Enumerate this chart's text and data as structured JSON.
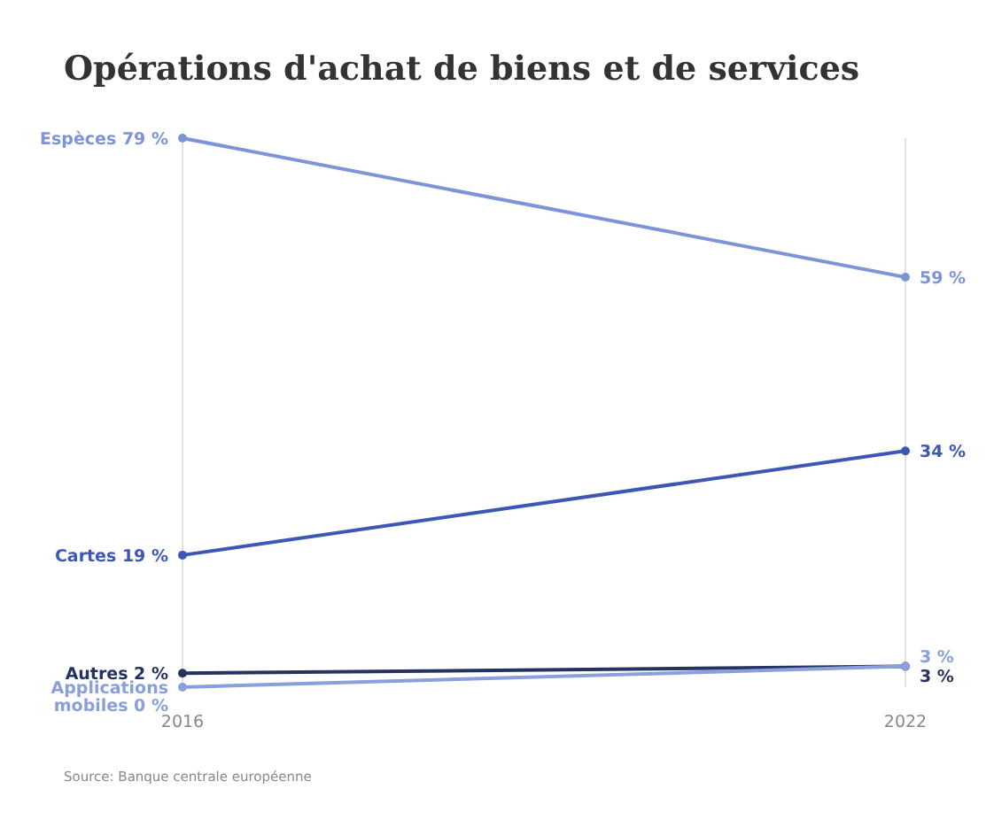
{
  "chart_data": {
    "type": "line",
    "title": "Opérations d'achat de biens et de services",
    "categories": [
      "2016",
      "2022"
    ],
    "grid": "x",
    "legend": false,
    "marker": "circle",
    "data_labels": true,
    "series": [
      {
        "name": "Espèces",
        "color": "#7d95d8",
        "values": [
          79,
          59
        ],
        "value_labels": [
          "79 %",
          "59 %"
        ]
      },
      {
        "name": "Cartes",
        "color": "#3d58b4",
        "values": [
          19,
          34
        ],
        "value_labels": [
          "19 %",
          "34 %"
        ]
      },
      {
        "name": "Autres",
        "color": "#27335f",
        "values": [
          2,
          3
        ],
        "value_labels": [
          "2 %",
          "3 %"
        ]
      },
      {
        "name": "Applications mobiles",
        "color": "#8aa0dc",
        "values": [
          0,
          3
        ],
        "value_labels": [
          "0 %",
          "3 %"
        ]
      }
    ],
    "annotations": [
      "Source: Banque centrale européenne"
    ]
  }
}
